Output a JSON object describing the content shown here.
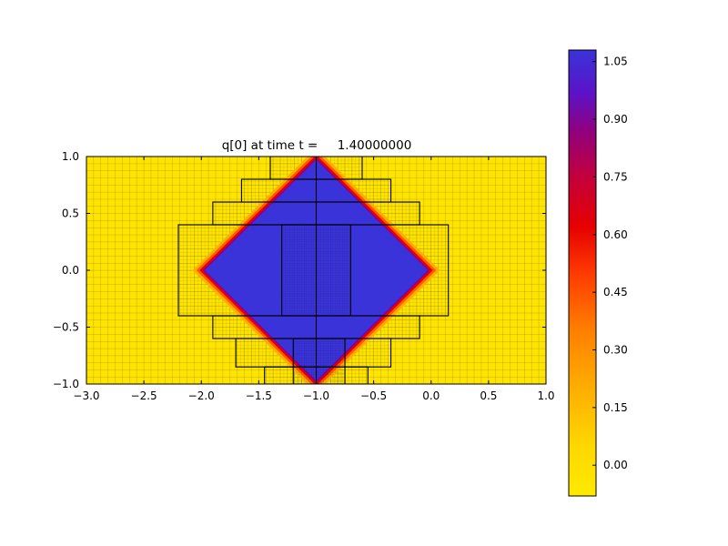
{
  "figure": {
    "title": "q[0] at time t =     1.40000000"
  },
  "chart_data": {
    "type": "heatmap",
    "title": "q[0] at time t =     1.40000000",
    "xlim": [
      -3.0,
      1.0
    ],
    "ylim": [
      -1.0,
      1.0
    ],
    "x_tick_values": [
      -3.0,
      -2.5,
      -2.0,
      -1.5,
      -1.0,
      -0.5,
      0.0,
      0.5,
      1.0
    ],
    "x_tick_labels": [
      "−3.0",
      "−2.5",
      "−2.0",
      "−1.5",
      "−1.0",
      "−0.5",
      "0.0",
      "0.5",
      "1.0"
    ],
    "y_tick_values": [
      -1.0,
      -0.5,
      0.0,
      0.5,
      1.0
    ],
    "y_tick_labels": [
      "−1.0",
      "−0.5",
      "0.0",
      "0.5",
      "1.0"
    ],
    "field": {
      "description": "square-wave pulse: q=1 inside diamond |x+1|+|y|<1, q=0 outside, thin smeared edge",
      "inside_value": 1.0,
      "outside_value": 0.0,
      "diamond_center": [
        -1.0,
        0.0
      ],
      "diamond_half_diagonal": 1.0
    },
    "colors": {
      "low": "#FFE400",
      "high": "#3A33D9",
      "edge_rings": [
        {
          "color": "#FFAE00",
          "stroke_width": 19
        },
        {
          "color": "#FF5A00",
          "stroke_width": 13
        },
        {
          "color": "#E60000",
          "stroke_width": 8
        },
        {
          "color": "#8A0090",
          "stroke_width": 3.6
        }
      ]
    },
    "amr_patches": [
      [
        -1.4,
        0.8,
        -0.6,
        1.0
      ],
      [
        -1.65,
        0.6,
        -0.35,
        0.8
      ],
      [
        -1.9,
        0.4,
        -0.1,
        0.6
      ],
      [
        -2.2,
        -0.4,
        0.15,
        0.4
      ],
      [
        -1.9,
        -0.6,
        -0.1,
        -0.4
      ],
      [
        -1.7,
        -0.85,
        -0.35,
        -0.6
      ],
      [
        -1.45,
        -1.0,
        -0.55,
        -0.85
      ],
      [
        -1.3,
        -0.4,
        -0.7,
        0.4
      ],
      [
        -1.2,
        -1.0,
        -0.75,
        -0.6
      ]
    ],
    "fine_patches": [
      [
        -1.3,
        -0.4,
        -0.7,
        0.4
      ],
      [
        -1.2,
        -1.0,
        -0.75,
        -0.6
      ]
    ],
    "patch_boundary_lines": [
      {
        "x1": -1.0,
        "y1": -1.0,
        "x2": -1.0,
        "y2": 1.0
      }
    ],
    "colorbar": {
      "vmin": -0.08,
      "vmax": 1.08,
      "tick_values": [
        1.05,
        0.9,
        0.75,
        0.6,
        0.45,
        0.3,
        0.15,
        0.0
      ],
      "tick_labels": [
        "1.05",
        "0.90",
        "0.75",
        "0.60",
        "0.45",
        "0.30",
        "0.15",
        "0.00"
      ],
      "gradient_stops": [
        {
          "v": -0.08,
          "color": "#FFEA00"
        },
        {
          "v": 0.05,
          "color": "#FFD700"
        },
        {
          "v": 0.2,
          "color": "#FFAE00"
        },
        {
          "v": 0.35,
          "color": "#FF8000"
        },
        {
          "v": 0.5,
          "color": "#FF3A00"
        },
        {
          "v": 0.62,
          "color": "#E60000"
        },
        {
          "v": 0.75,
          "color": "#C3003C"
        },
        {
          "v": 0.87,
          "color": "#90007E"
        },
        {
          "v": 0.97,
          "color": "#5A14C8"
        },
        {
          "v": 1.08,
          "color": "#3A33D9"
        }
      ]
    }
  }
}
